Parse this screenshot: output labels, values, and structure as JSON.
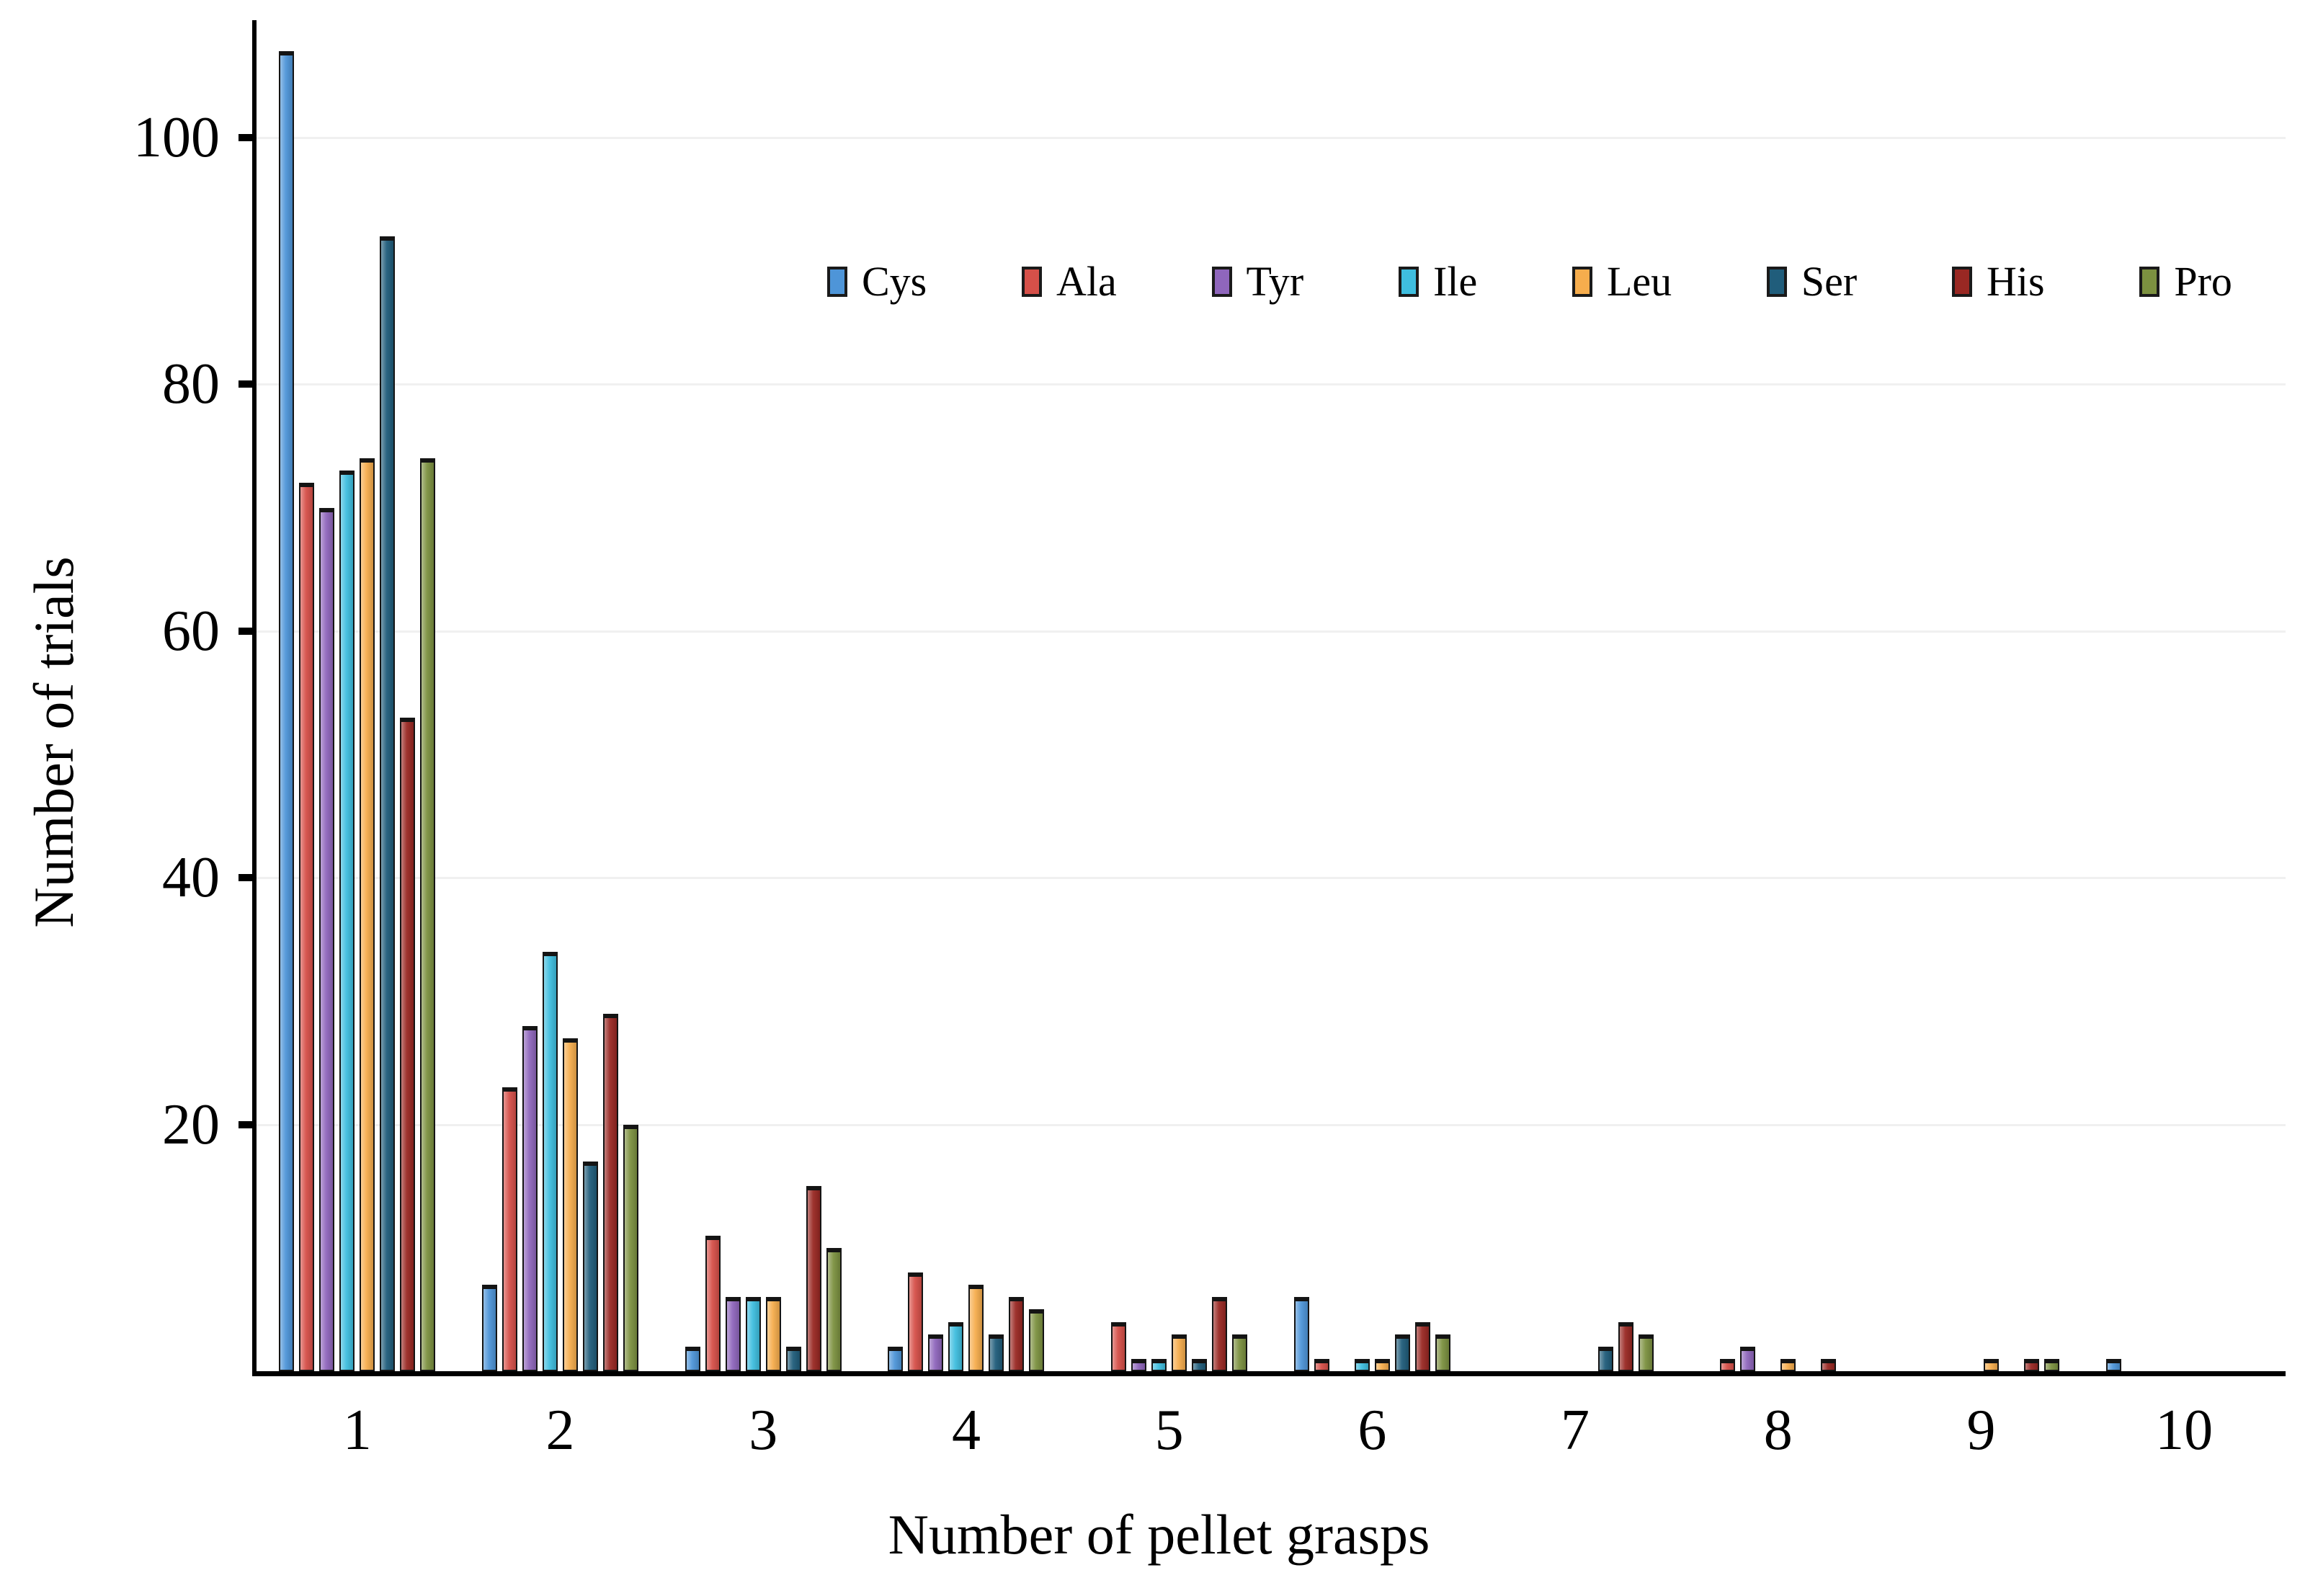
{
  "chart_data": {
    "type": "bar",
    "title": "",
    "xlabel": "Number of pellet grasps",
    "ylabel": "Number of trials",
    "categories": [
      "1",
      "2",
      "3",
      "4",
      "5",
      "6",
      "7",
      "8",
      "9",
      "10"
    ],
    "y_ticks": [
      20,
      40,
      60,
      80,
      100
    ],
    "ylim": [
      0,
      110
    ],
    "grid": "horizontal",
    "legend_position": "top-center-inside",
    "series": [
      {
        "name": "Cys",
        "color": "#4E95D8",
        "values": [
          107,
          7,
          2,
          2,
          0,
          6,
          0,
          0,
          0,
          1
        ]
      },
      {
        "name": "Ala",
        "color": "#D65049",
        "values": [
          72,
          23,
          11,
          8,
          4,
          1,
          0,
          1,
          0,
          0
        ]
      },
      {
        "name": "Tyr",
        "color": "#8F66BC",
        "values": [
          70,
          28,
          6,
          3,
          1,
          0,
          0,
          2,
          0,
          0
        ]
      },
      {
        "name": "Ile",
        "color": "#3FBEDF",
        "values": [
          73,
          34,
          6,
          4,
          1,
          1,
          0,
          0,
          0,
          0
        ]
      },
      {
        "name": "Leu",
        "color": "#F6AD4D",
        "values": [
          74,
          27,
          6,
          7,
          3,
          1,
          0,
          1,
          1,
          0
        ]
      },
      {
        "name": "Ser",
        "color": "#205D7B",
        "values": [
          92,
          17,
          2,
          3,
          1,
          3,
          2,
          0,
          0,
          0
        ]
      },
      {
        "name": "His",
        "color": "#992823",
        "values": [
          53,
          29,
          15,
          6,
          6,
          4,
          4,
          1,
          1,
          0
        ]
      },
      {
        "name": "Pro",
        "color": "#7C9140",
        "values": [
          74,
          20,
          10,
          5,
          3,
          3,
          3,
          0,
          1,
          0
        ]
      }
    ]
  }
}
